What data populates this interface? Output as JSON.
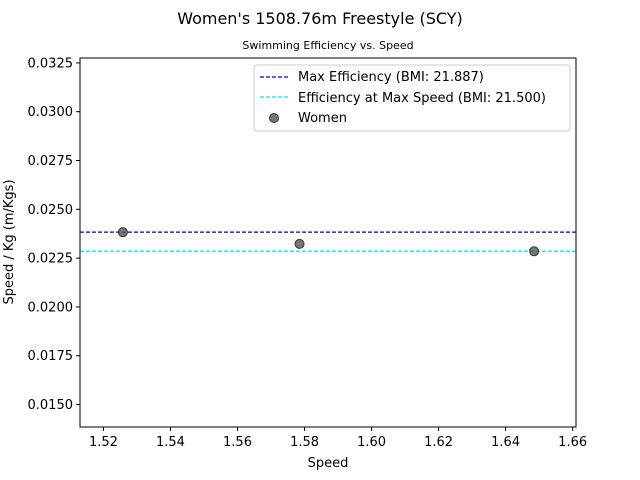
{
  "chart_data": {
    "type": "scatter",
    "title": "Women's 1508.76m Freestyle (SCY)",
    "subtitle": "Swimming Efficiency vs. Speed",
    "xlabel": "Speed",
    "ylabel": "Speed / Kg (m/Kgs)",
    "xlim": [
      1.513,
      1.661
    ],
    "ylim": [
      0.01385,
      0.03275
    ],
    "xticks": [
      1.52,
      1.54,
      1.56,
      1.58,
      1.6,
      1.62,
      1.64,
      1.66
    ],
    "xtick_labels": [
      "1.52",
      "1.54",
      "1.56",
      "1.58",
      "1.60",
      "1.62",
      "1.64",
      "1.66"
    ],
    "yticks": [
      0.015,
      0.0175,
      0.02,
      0.0225,
      0.025,
      0.0275,
      0.03,
      0.0325
    ],
    "ytick_labels": [
      "0.0150",
      "0.0175",
      "0.0200",
      "0.0225",
      "0.0250",
      "0.0275",
      "0.0300",
      "0.0325"
    ],
    "grid": false,
    "legend_position": "top-right",
    "series": [
      {
        "name": "Women",
        "kind": "scatter",
        "color": "#555555",
        "x": [
          1.5258,
          1.5785,
          1.6485
        ],
        "y": [
          0.02383,
          0.02323,
          0.02285
        ]
      }
    ],
    "reference_lines": [
      {
        "name": "Max Efficiency (BMI: 21.887)",
        "y": 0.02383,
        "color": "#0000cc",
        "style": "dashed"
      },
      {
        "name": "Efficiency at Max Speed (BMI: 21.500)",
        "y": 0.02285,
        "color": "#00e5e5",
        "style": "dashed"
      }
    ]
  }
}
